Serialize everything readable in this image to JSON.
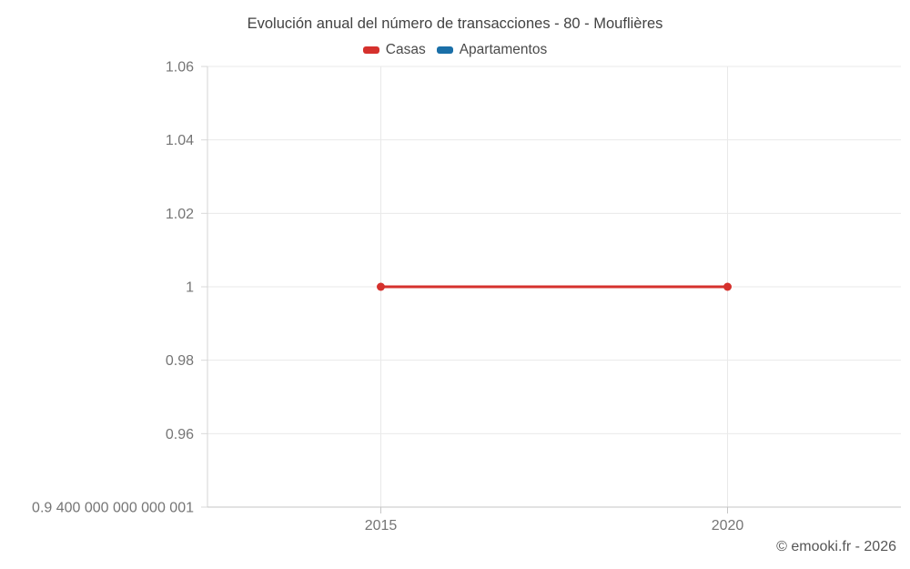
{
  "header": {
    "title": "Evolución anual del número de transacciones - 80 - Mouflières"
  },
  "footer": {
    "credit": "© emooki.fr - 2026"
  },
  "colors": {
    "casas_red": "#d5312d",
    "apartamentos_blue": "#1a6fa8",
    "grid": "#e9e9e9",
    "axis_bottom": "#c6c6c6",
    "axis_left": "#d6d6d6",
    "tick": "#d9d9d9",
    "tick_label": "#757575",
    "title_text": "#424242",
    "background": "#ffffff"
  },
  "chart_data": {
    "type": "line",
    "title": "Evolución anual del número de transacciones - 80 - Mouflières",
    "xlabel": "",
    "ylabel": "",
    "xlim": [
      2012.5,
      2022.5
    ],
    "ylim": [
      0.94,
      1.06
    ],
    "grid": true,
    "legend_position": "top",
    "x_ticks": [
      {
        "value": 2015,
        "label": "2015"
      },
      {
        "value": 2020,
        "label": "2020"
      }
    ],
    "y_ticks": [
      {
        "value": 1.06,
        "label": "1.06"
      },
      {
        "value": 1.04,
        "label": "1.04"
      },
      {
        "value": 1.02,
        "label": "1.02"
      },
      {
        "value": 1.0,
        "label": "1"
      },
      {
        "value": 0.98,
        "label": "0.98"
      },
      {
        "value": 0.96,
        "label": "0.96"
      },
      {
        "value": 0.94,
        "label": "0.9 400 000 000 000 001"
      }
    ],
    "series": [
      {
        "name": "Casas",
        "color": "#d5312d",
        "points": [
          {
            "x": 2015,
            "y": 1
          },
          {
            "x": 2020,
            "y": 1
          }
        ]
      },
      {
        "name": "Apartamentos",
        "color": "#1a6fa8",
        "points": []
      }
    ]
  }
}
